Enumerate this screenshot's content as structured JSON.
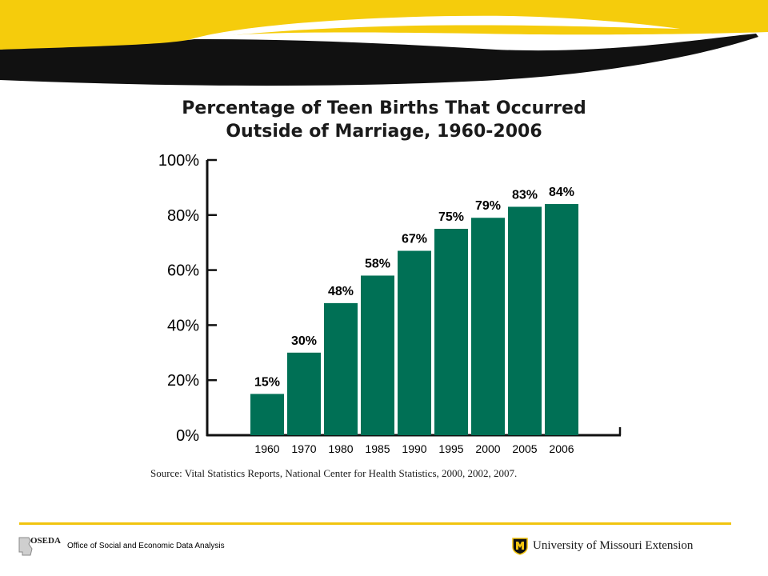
{
  "colors": {
    "bar": "#007055",
    "banner_yellow": "#f5cc0c",
    "banner_black": "#111111",
    "footer_rule": "#f1c40f"
  },
  "chart_data": {
    "type": "bar",
    "title": [
      "Percentage of Teen Births That Occurred",
      "Outside of Marriage, 1960-2006"
    ],
    "categories": [
      "1960",
      "1970",
      "1980",
      "1985",
      "1990",
      "1995",
      "2000",
      "2005",
      "2006"
    ],
    "values": [
      15,
      30,
      48,
      58,
      67,
      75,
      79,
      83,
      84
    ],
    "data_labels": [
      "15%",
      "30%",
      "48%",
      "58%",
      "67%",
      "75%",
      "79%",
      "83%",
      "84%"
    ],
    "ylim": [
      0,
      100
    ],
    "yticks": [
      0,
      20,
      40,
      60,
      80,
      100
    ],
    "ytick_labels": [
      "0%",
      "20%",
      "40%",
      "60%",
      "80%",
      "100%"
    ],
    "xlabel": "",
    "ylabel": "",
    "grid": false,
    "legend": "none"
  },
  "source": "Source: Vital Statistics Reports, National Center for Health Statistics, 2000, 2002, 2007.",
  "footer": {
    "oseda_abbr": "OSEDA",
    "oseda_name": "Office of Social and Economic Data Analysis",
    "university": "University of Missouri Extension"
  }
}
